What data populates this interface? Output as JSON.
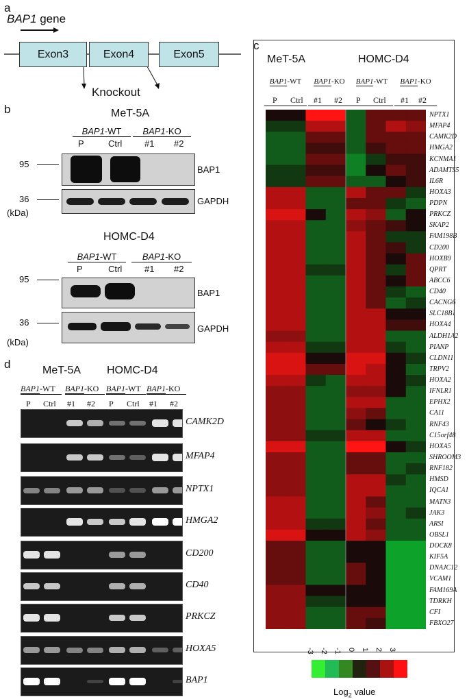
{
  "panel_a": {
    "letter": "a",
    "gene_italic": "BAP1",
    "gene_suffix": " gene",
    "exons": [
      "Exon3",
      "Exon4",
      "Exon5"
    ],
    "knockout": "Knockout"
  },
  "panel_b": {
    "letter": "b",
    "blots": [
      {
        "title": "MeT-5A",
        "wt": "BAP1",
        "wt_suffix": "-WT",
        "ko": "BAP1",
        "ko_suffix": "-KO",
        "lanes": [
          "P",
          "Ctrl",
          "#1",
          "#2"
        ],
        "marker_top": "95",
        "marker_bottom": "36",
        "unit": "(kDa)",
        "band_top": "BAP1",
        "band_bottom": "GAPDH"
      },
      {
        "title": "HOMC-D4",
        "wt": "BAP1",
        "wt_suffix": "-WT",
        "ko": "BAP1",
        "ko_suffix": "-KO",
        "lanes": [
          "P",
          "Ctrl",
          "#1",
          "#2"
        ],
        "marker_top": "95",
        "marker_bottom": "36",
        "unit": "(kDa)",
        "band_top": "BAP1",
        "band_bottom": "GAPDH"
      }
    ]
  },
  "panel_c": {
    "letter": "c",
    "cell_lines": [
      "MeT-5A",
      "HOMC-D4"
    ],
    "groups": [
      {
        "gene": "BAP1",
        "suffix": "-WT"
      },
      {
        "gene": "BAP1",
        "suffix": "-KO"
      },
      {
        "gene": "BAP1",
        "suffix": "-WT"
      },
      {
        "gene": "BAP1",
        "suffix": "-KO"
      }
    ],
    "lanes": [
      "P",
      "Ctrl",
      "#1",
      "#2",
      "P",
      "Ctrl",
      "#1",
      "#2"
    ],
    "colorbar": {
      "ticks": [
        "-3",
        "-2",
        "-1",
        "0",
        "1",
        "2",
        "3"
      ],
      "colors": [
        "#33ee33",
        "#22bb55",
        "#338822",
        "#222211",
        "#551111",
        "#aa1111",
        "#ff1111"
      ],
      "label": "Log",
      "label_sub": "2",
      "label_suffix": " value"
    }
  },
  "chart_data": {
    "type": "heatmap",
    "columns": [
      "MeT-5A P",
      "MeT-5A Ctrl",
      "MeT-5A #1",
      "MeT-5A #2",
      "HOMC-D4 P",
      "HOMC-D4 Ctrl",
      "HOMC-D4 #1",
      "HOMC-D4 #2"
    ],
    "rows": [
      "NPTX1",
      "MFAP4",
      "CAMK2D",
      "HMGA2",
      "KCNMA1",
      "ADAMTS5",
      "IL6R",
      "HOXA3",
      "PDPN",
      "PRKCZ",
      "SKAP2",
      "FAM198B",
      "CD200",
      "HOXB9",
      "QPRT",
      "ABCC6",
      "CD40",
      "CACNG6",
      "SLC18B1",
      "HOXA4",
      "ALDH1A2",
      "PIANP",
      "CLDN11",
      "TRPV2",
      "HOXA2",
      "IFNLR1",
      "EPHX2",
      "CA11",
      "RNF43",
      "C15orf48",
      "HOXA5",
      "SHROOM3",
      "RNF182",
      "HMSD",
      "IQCA1",
      "MATN3",
      "JAK3",
      "ARSI",
      "OBSL1",
      "DOCK8",
      "KIF5A",
      "DNAJC12",
      "VCAM1",
      "FAM169A",
      "TDRKH",
      "CFI",
      "FBXO27"
    ],
    "values": [
      [
        0,
        0,
        3,
        3,
        -1,
        1,
        1,
        1
      ],
      [
        -0.5,
        -0.5,
        2,
        2,
        -1,
        1,
        2,
        1.5
      ],
      [
        -1,
        -1,
        1,
        1,
        -1,
        1,
        1,
        1
      ],
      [
        -1,
        -1,
        0.5,
        0.5,
        -1,
        0.5,
        1,
        1
      ],
      [
        -1,
        -1,
        1,
        1,
        -1.5,
        -0.5,
        0.5,
        0.5
      ],
      [
        -0.5,
        -0.5,
        0.5,
        0.5,
        -1.5,
        0,
        1,
        0.5
      ],
      [
        -0.5,
        -0.5,
        1,
        1,
        -1,
        -1,
        0,
        0.5
      ],
      [
        2,
        2,
        -1,
        -1,
        2,
        1,
        1,
        -0.5
      ],
      [
        2,
        2,
        -1,
        -1,
        1,
        1,
        -0.5,
        -1
      ],
      [
        2.5,
        2.5,
        0,
        -1,
        2,
        1.5,
        -1,
        0
      ],
      [
        2,
        2,
        -1,
        -1,
        1.5,
        1,
        0.5,
        0
      ],
      [
        2,
        2,
        -1,
        -1,
        2,
        1,
        -0.5,
        -0.5
      ],
      [
        2,
        2,
        -1,
        -1,
        2,
        1,
        0.5,
        -0.5
      ],
      [
        2,
        2,
        -1,
        -1,
        2,
        1,
        0,
        1
      ],
      [
        2,
        2,
        -0.5,
        -0.5,
        2,
        1,
        -0.5,
        1
      ],
      [
        2,
        2,
        -1,
        -1,
        2,
        1,
        0,
        1
      ],
      [
        2,
        2,
        -1,
        -1,
        2,
        1,
        -0.5,
        -1
      ],
      [
        2,
        2,
        -1,
        -1,
        2,
        1,
        -1,
        -0.5
      ],
      [
        2,
        2,
        -1,
        -1,
        2,
        2,
        0,
        0
      ],
      [
        2,
        2,
        -1,
        -1,
        2,
        2,
        0.5,
        0.5
      ],
      [
        1.5,
        1.5,
        -1,
        -1,
        2,
        2,
        -1,
        -1
      ],
      [
        2,
        2,
        -0.5,
        -0.5,
        2,
        2,
        -0.5,
        -1
      ],
      [
        2.5,
        2.5,
        0,
        0,
        2.5,
        2.5,
        0,
        -0.5
      ],
      [
        2.5,
        2.5,
        1,
        1,
        2.5,
        2,
        0,
        -1
      ],
      [
        2,
        2,
        -0.5,
        -1,
        2,
        2,
        0,
        -0.5
      ],
      [
        1.5,
        1.5,
        -1,
        -1,
        1.5,
        1.5,
        0,
        -1
      ],
      [
        1.5,
        1.5,
        -1,
        -1,
        2,
        2,
        -1,
        -1
      ],
      [
        1.5,
        1.5,
        -1,
        -1,
        1.5,
        1,
        -1,
        -1
      ],
      [
        1.5,
        1.5,
        -1,
        -1,
        1,
        0,
        -0.5,
        -1
      ],
      [
        1.5,
        1.5,
        -0.5,
        -0.5,
        2,
        2,
        -1,
        -1
      ],
      [
        2.5,
        2.5,
        -1,
        -1,
        3,
        3,
        0,
        -0.5
      ],
      [
        1.5,
        1.5,
        -1,
        -1,
        1,
        1,
        -1,
        -1
      ],
      [
        1.5,
        1.5,
        -1,
        -1,
        1,
        1,
        -1,
        -0.5
      ],
      [
        1.5,
        1.5,
        -1,
        -1,
        2,
        2,
        -0.5,
        -1
      ],
      [
        1.5,
        1.5,
        -1,
        -1,
        2,
        2,
        -1,
        -1
      ],
      [
        2,
        2,
        -1,
        -1,
        2,
        1,
        -1,
        -1
      ],
      [
        2,
        2,
        -1,
        -1,
        2,
        1.5,
        -1,
        -0.5
      ],
      [
        2,
        2,
        -0.5,
        -0.5,
        2,
        1,
        -1,
        -1
      ],
      [
        2.5,
        2.5,
        0,
        0,
        2,
        1.5,
        -1,
        -1
      ],
      [
        1,
        1,
        -1,
        -1,
        0,
        0,
        -2,
        -2
      ],
      [
        1,
        1,
        -1,
        -1,
        0,
        0,
        -2,
        -2
      ],
      [
        1,
        1,
        -1,
        -1,
        1,
        0,
        -2,
        -2
      ],
      [
        1,
        1,
        -1,
        -1,
        1,
        0,
        -2,
        -2
      ],
      [
        1.5,
        1.5,
        0,
        0,
        0,
        0,
        -2,
        -2
      ],
      [
        1.5,
        1.5,
        -0.5,
        -0.5,
        0,
        0,
        -2,
        -2
      ],
      [
        1.5,
        1.5,
        -1,
        -1,
        1,
        1,
        -2,
        -2
      ],
      [
        1.5,
        1.5,
        -1,
        -1,
        1,
        0.5,
        -2,
        -2
      ]
    ],
    "color_scale": [
      -3,
      3
    ]
  },
  "panel_d": {
    "letter": "d",
    "cell_lines": [
      "MeT-5A",
      "HOMC-D4"
    ],
    "groups": [
      {
        "gene": "BAP1",
        "suffix": "-WT"
      },
      {
        "gene": "BAP1",
        "suffix": "-KO"
      },
      {
        "gene": "BAP1",
        "suffix": "-WT"
      },
      {
        "gene": "BAP1",
        "suffix": "-KO"
      }
    ],
    "lanes": [
      "P",
      "Ctrl",
      "#1",
      "#2",
      "P",
      "Ctrl",
      "#1",
      "#2"
    ],
    "gels": [
      {
        "gene": "CAMK2D",
        "bands": [
          0,
          0,
          0.8,
          0.7,
          0.4,
          0.4,
          0.9,
          0.9
        ]
      },
      {
        "gene": "MFAP4",
        "bands": [
          0,
          0,
          0.8,
          0.8,
          0.4,
          0.3,
          0.9,
          0.9
        ]
      },
      {
        "gene": "NPTX1",
        "bands": [
          0.5,
          0.5,
          0.6,
          0.6,
          0.2,
          0.2,
          0.6,
          0.6
        ]
      },
      {
        "gene": "HMGA2",
        "bands": [
          0,
          0,
          0.9,
          0.8,
          0.8,
          0.9,
          1,
          1
        ]
      },
      {
        "gene": "CD200",
        "bands": [
          0.9,
          0.9,
          0,
          0,
          0.6,
          0.6,
          0,
          0
        ]
      },
      {
        "gene": "CD40",
        "bands": [
          0.8,
          0.8,
          0,
          0,
          0.7,
          0.7,
          0,
          0
        ]
      },
      {
        "gene": "PRKCZ",
        "bands": [
          0.9,
          0.9,
          0,
          0,
          0.8,
          0.8,
          0,
          0
        ]
      },
      {
        "gene": "HOXA5",
        "bands": [
          0.6,
          0.6,
          0.5,
          0.5,
          0.7,
          0.7,
          0.3,
          0.3
        ]
      },
      {
        "gene": "BAP1",
        "bands": [
          1,
          1,
          0,
          0.1,
          1,
          1,
          0,
          0.1
        ]
      }
    ]
  }
}
